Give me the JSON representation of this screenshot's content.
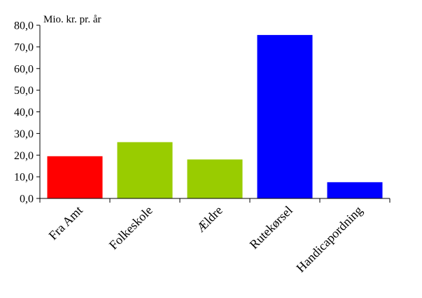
{
  "chart_data": {
    "type": "bar",
    "ylabel": "Mio. kr. pr. år",
    "categories": [
      "Fra Amt",
      "Folkeskole",
      "Ældre",
      "Rutekørsel",
      "Handicapordning"
    ],
    "values": [
      19.5,
      26.0,
      18.0,
      75.5,
      7.5
    ],
    "colors": [
      "#ff0000",
      "#99cc00",
      "#99cc00",
      "#0000ff",
      "#0000ff"
    ],
    "ylim": [
      0,
      80
    ],
    "yticks": [
      "0,0",
      "10,0",
      "20,0",
      "30,0",
      "40,0",
      "50,0",
      "60,0",
      "70,0",
      "80,0"
    ],
    "ytick_values": [
      0,
      10,
      20,
      30,
      40,
      50,
      60,
      70,
      80
    ],
    "grid": false,
    "legend": "none"
  }
}
